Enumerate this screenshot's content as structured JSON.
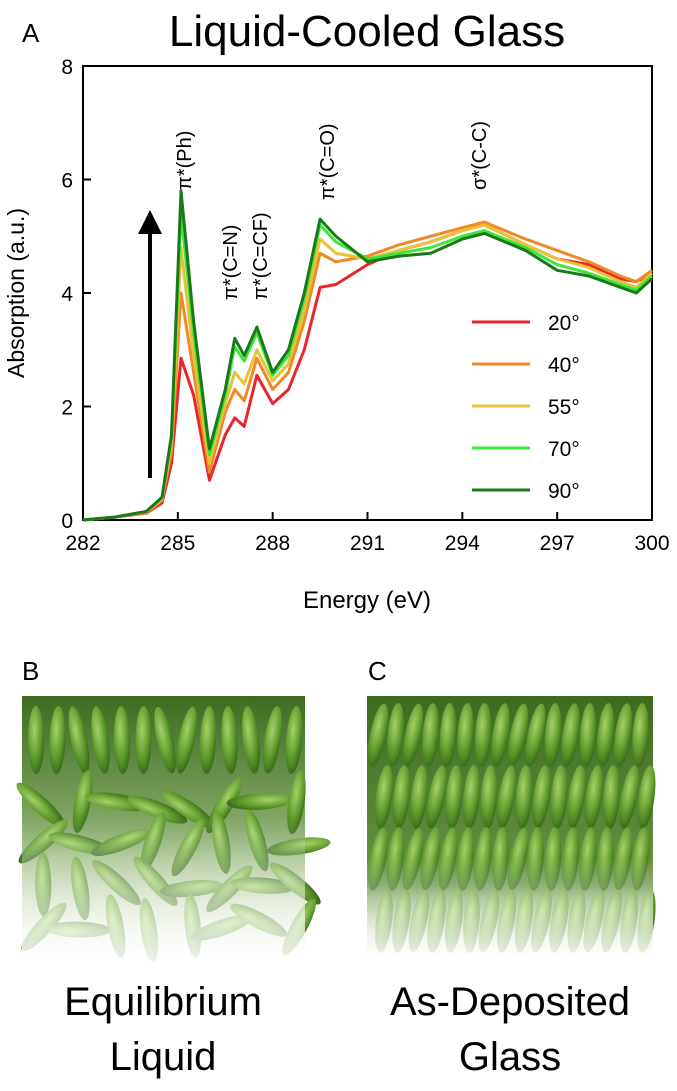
{
  "chart_data": {
    "type": "line",
    "title": "Liquid-Cooled Glass",
    "x_label": "Energy (eV)",
    "y_label": "Absorption (a.u.)",
    "x": [
      282,
      283,
      284,
      284.5,
      284.8,
      285.1,
      285.5,
      286,
      286.5,
      286.8,
      287.1,
      287.5,
      288,
      288.5,
      289,
      289.5,
      290,
      291,
      292,
      293,
      294,
      294.7,
      296,
      297,
      298,
      299,
      299.5,
      300
    ],
    "series": [
      {
        "name": "20°",
        "color": "#e8262b",
        "values": [
          0,
          0.05,
          0.12,
          0.3,
          1.0,
          2.85,
          2.2,
          0.7,
          1.5,
          1.8,
          1.65,
          2.55,
          2.05,
          2.3,
          3.0,
          4.1,
          4.15,
          4.5,
          4.75,
          4.9,
          5.1,
          5.2,
          4.85,
          4.6,
          4.5,
          4.25,
          4.2,
          4.35
        ]
      },
      {
        "name": "40°",
        "color": "#f08a24",
        "values": [
          0,
          0.05,
          0.13,
          0.35,
          1.2,
          4.0,
          2.6,
          0.85,
          1.9,
          2.3,
          2.1,
          2.85,
          2.3,
          2.6,
          3.5,
          4.7,
          4.55,
          4.65,
          4.85,
          5.0,
          5.15,
          5.25,
          4.95,
          4.75,
          4.55,
          4.3,
          4.2,
          4.4
        ]
      },
      {
        "name": "55°",
        "color": "#e8c23a",
        "values": [
          0,
          0.05,
          0.14,
          0.37,
          1.35,
          4.8,
          2.9,
          1.0,
          2.05,
          2.6,
          2.4,
          3.0,
          2.45,
          2.75,
          3.7,
          4.95,
          4.7,
          4.6,
          4.75,
          4.9,
          5.1,
          5.2,
          4.85,
          4.6,
          4.45,
          4.2,
          4.1,
          4.35
        ]
      },
      {
        "name": "70°",
        "color": "#3ee83a",
        "values": [
          0,
          0.05,
          0.15,
          0.39,
          1.45,
          5.4,
          3.3,
          1.15,
          2.2,
          3.05,
          2.8,
          3.3,
          2.55,
          2.9,
          3.9,
          5.2,
          4.9,
          4.6,
          4.7,
          4.8,
          5.0,
          5.1,
          4.8,
          4.5,
          4.35,
          4.15,
          4.05,
          4.3
        ]
      },
      {
        "name": "90°",
        "color": "#1a7a1a",
        "values": [
          0,
          0.05,
          0.15,
          0.4,
          1.5,
          5.8,
          3.5,
          1.25,
          2.3,
          3.2,
          2.9,
          3.4,
          2.6,
          3.0,
          4.0,
          5.3,
          5.0,
          4.55,
          4.65,
          4.7,
          4.95,
          5.05,
          4.75,
          4.4,
          4.3,
          4.1,
          4.0,
          4.25
        ]
      }
    ],
    "xlim": [
      282,
      300
    ],
    "ylim": [
      0,
      8
    ],
    "xticks": [
      282,
      285,
      288,
      291,
      294,
      297,
      300
    ],
    "yticks": [
      0,
      2,
      4,
      6,
      8
    ],
    "annotations": [
      "π*(Ph)",
      "π*(C=N)",
      "π*(C=CF)",
      "π*(C=O)",
      "σ*(C-C)"
    ]
  },
  "panel_labels": [
    "A",
    "B",
    "C"
  ],
  "illustrations": [
    {
      "caption": [
        "Equilibrium",
        "Liquid"
      ]
    },
    {
      "caption": [
        "As-Deposited",
        "Glass"
      ]
    }
  ]
}
